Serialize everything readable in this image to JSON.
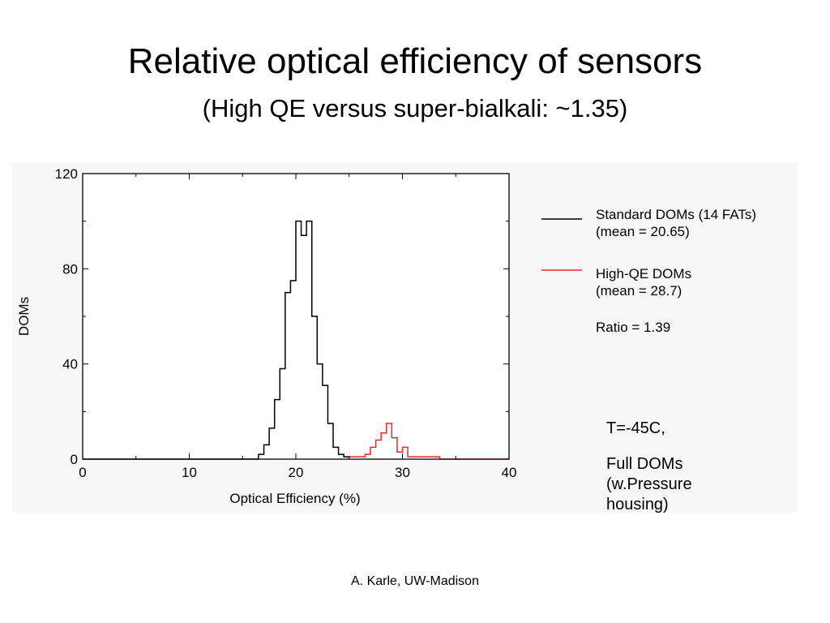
{
  "slide": {
    "title": "Relative optical efficiency of sensors",
    "subtitle": "(High QE versus super-bialkali:  ~1.35)",
    "notes": [
      "T=-45C,",
      "Full DOMs",
      "(w.Pressure",
      "housing)"
    ],
    "footer": "A. Karle, UW-Madison"
  },
  "chart_data": {
    "type": "line",
    "style": "step-histogram",
    "title": "",
    "xlabel": "Optical Efficiency (%)",
    "ylabel": "DOMs",
    "xlim": [
      0,
      40
    ],
    "ylim": [
      0,
      120
    ],
    "x_ticks": [
      0,
      10,
      20,
      30,
      40
    ],
    "y_ticks": [
      0,
      40,
      80,
      120
    ],
    "grid": false,
    "legend_position": "right",
    "annotation": "Ratio = 1.39",
    "series": [
      {
        "name": "Standard DOMs (14 FATs)",
        "legend_sub": "(mean = 20.65)",
        "color": "#000000",
        "bin_edges": [
          16.5,
          17,
          17.5,
          18,
          18.5,
          19,
          19.5,
          20,
          20.5,
          21,
          21.5,
          22,
          22.5,
          23,
          23.5,
          24,
          24.5,
          25
        ],
        "counts": [
          2,
          6,
          13,
          25,
          38,
          70,
          75,
          100,
          94,
          100,
          60,
          40,
          31,
          15,
          5,
          2,
          1
        ]
      },
      {
        "name": "High-QE DOMs",
        "legend_sub": "(mean = 28.7)",
        "color": "#e8281e",
        "bin_edges": [
          25,
          25.5,
          26,
          26.5,
          27,
          27.5,
          28,
          28.5,
          29,
          29.5,
          30,
          30.5,
          31,
          31.5,
          32,
          32.5,
          33,
          33.5
        ],
        "counts": [
          1,
          1,
          1,
          2,
          5,
          8,
          11,
          15,
          9,
          3,
          5,
          1,
          1,
          1,
          1,
          1,
          1
        ]
      }
    ]
  }
}
